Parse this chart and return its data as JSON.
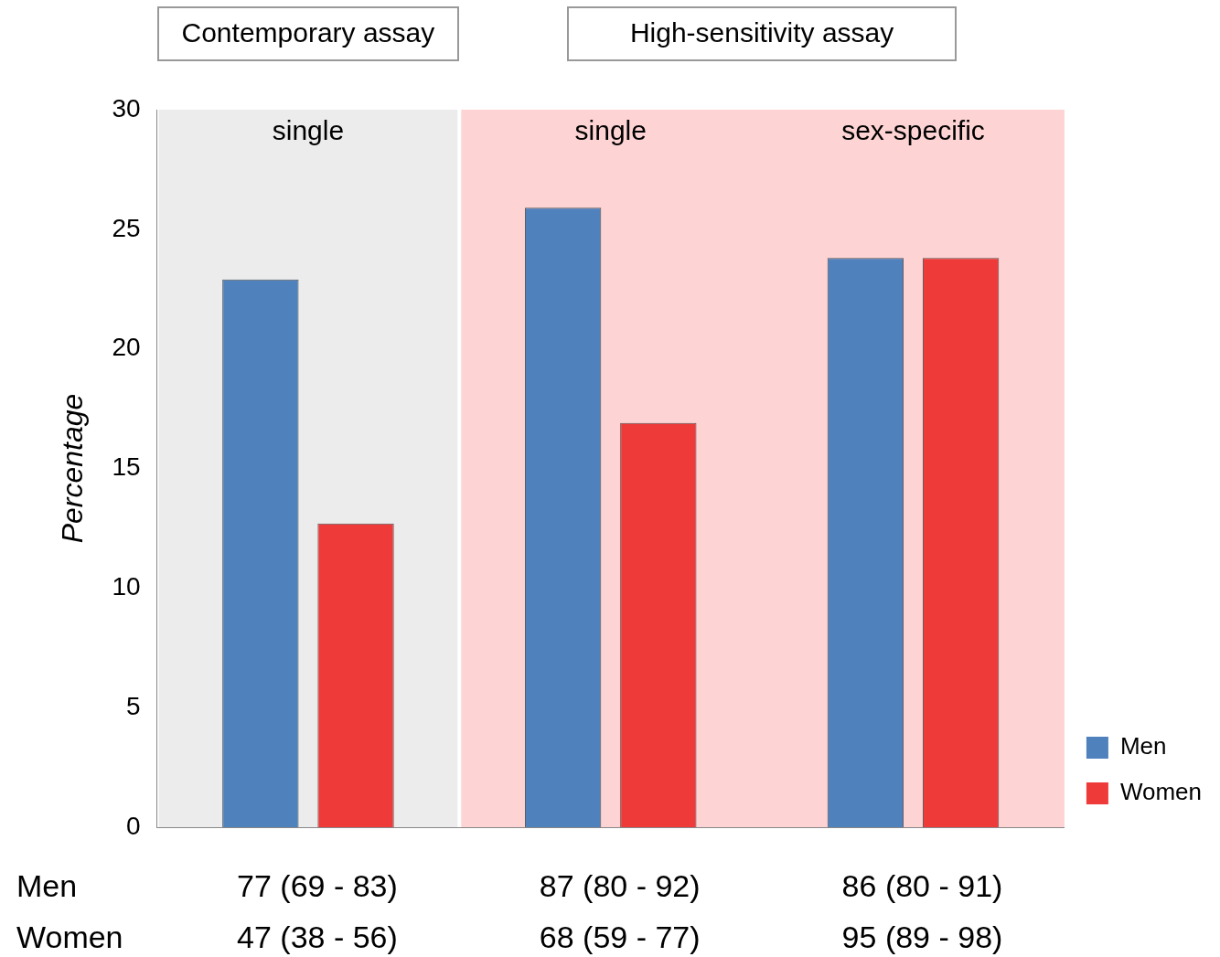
{
  "chart_data": {
    "type": "bar",
    "ylabel": "Percentage",
    "categories": [
      "single",
      "single",
      "sex-specific"
    ],
    "series": [
      {
        "name": "Men",
        "color": "#4f81bd",
        "values": [
          22.9,
          25.9,
          23.8
        ]
      },
      {
        "name": "Women",
        "color": "#ef3a3a",
        "values": [
          12.7,
          16.9,
          23.8
        ]
      }
    ],
    "ylim": [
      0,
      30
    ],
    "yticks": [
      0,
      5,
      10,
      15,
      20,
      25,
      30
    ],
    "grid": false,
    "legend": "bottom right",
    "bands": [
      {
        "axis": "x",
        "from": "single",
        "to": "single",
        "label": "Contemporary assay",
        "color": "#ececec"
      },
      {
        "axis": "x",
        "from": "single",
        "to": "sex-specific",
        "label": "High-sensitivity assay",
        "color": "#fdd3d3"
      }
    ],
    "annotations": [
      "Men",
      "77 (69 - 83)",
      "87 (80 - 92)",
      "86 (80 - 91)",
      "Women",
      "47 (38 - 56)",
      "68 (59 - 77)",
      "95 (89 - 98)"
    ]
  }
}
